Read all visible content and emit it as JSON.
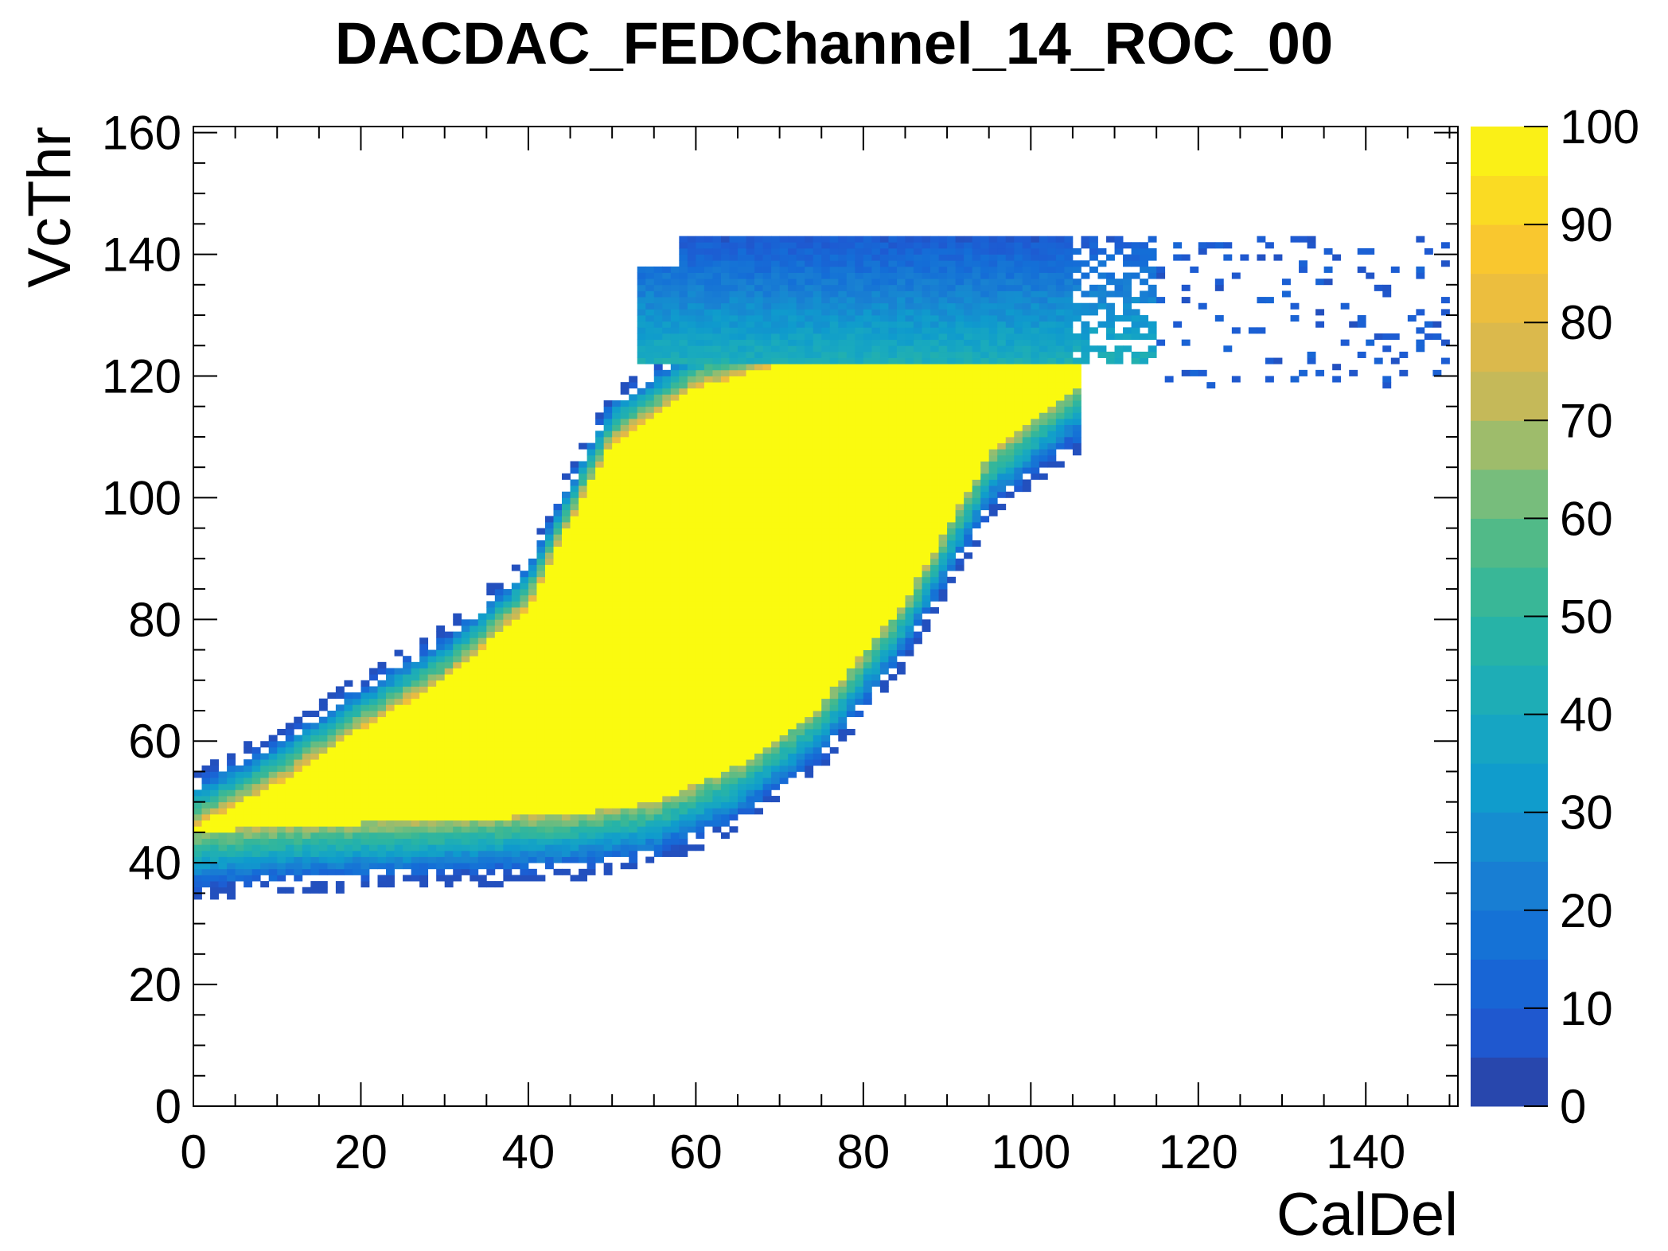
{
  "chart_data": {
    "type": "heatmap",
    "title": "DACDAC_FEDChannel_14_ROC_00",
    "xlabel": "CalDel",
    "ylabel": "VcThr",
    "xlim": [
      0,
      151
    ],
    "ylim": [
      0,
      161
    ],
    "x_ticks": [
      "0",
      "20",
      "40",
      "60",
      "80",
      "100",
      "120",
      "140"
    ],
    "y_ticks": [
      "0",
      "20",
      "40",
      "60",
      "80",
      "100",
      "120",
      "140",
      "160"
    ],
    "z_ticks": [
      "0",
      "10",
      "20",
      "30",
      "40",
      "50",
      "60",
      "70",
      "80",
      "90",
      "100"
    ],
    "zlim": [
      0,
      100
    ],
    "colormap": "parula-like (dark blue → teal → green → orange → yellow)",
    "regions": {
      "saturated_band": {
        "description": "main efficiency region with counts ≈ 100",
        "lower_edge": [
          [
            0,
            45
          ],
          [
            10,
            46
          ],
          [
            30,
            47
          ],
          [
            45,
            48
          ],
          [
            55,
            50
          ],
          [
            65,
            56
          ],
          [
            75,
            66
          ],
          [
            85,
            83
          ],
          [
            95,
            107
          ],
          [
            105,
            118
          ]
        ],
        "upper_edge": [
          [
            0,
            46
          ],
          [
            10,
            53
          ],
          [
            20,
            62
          ],
          [
            30,
            70
          ],
          [
            40,
            82
          ],
          [
            45,
            96
          ],
          [
            50,
            109
          ],
          [
            60,
            118
          ],
          [
            70,
            122
          ],
          [
            90,
            124
          ],
          [
            100,
            124
          ]
        ]
      },
      "upper_plateau": {
        "description": "medium/low count plateau",
        "x_range": [
          53,
          115
        ],
        "y_top": 143,
        "y_bottom": 122
      },
      "scattered_points": {
        "description": "sparse low-count bins",
        "x_range": [
          115,
          150
        ],
        "y_range": [
          118,
          143
        ]
      }
    },
    "grid": false
  }
}
